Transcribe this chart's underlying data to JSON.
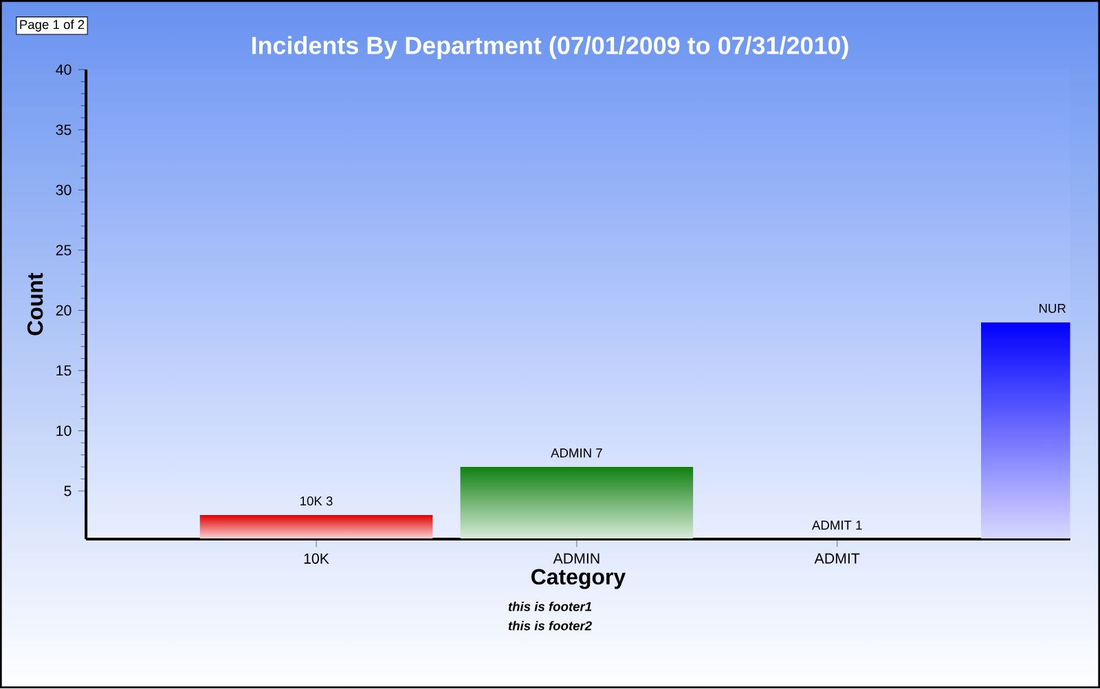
{
  "chart_data": {
    "type": "bar",
    "title": "Incidents By Department (07/01/2009 to 07/31/2010)",
    "xlabel": "Category",
    "ylabel": "Count",
    "categories": [
      "10K",
      "ADMIN",
      "ADMIT",
      null
    ],
    "values": [
      3,
      7,
      1,
      19
    ],
    "colors": [
      "#e00000",
      "#108010",
      "#e8e840",
      "#0000ff"
    ],
    "value_labels": [
      "10K 3",
      "ADMIN 7",
      "ADMIT 1",
      "NUR"
    ],
    "ylim": [
      1,
      40
    ],
    "yticks": [
      5,
      10,
      15,
      20,
      25,
      30,
      35,
      40
    ],
    "annotations": [
      "Page 1 of 2",
      "this is footer1",
      "this is footer2"
    ]
  }
}
